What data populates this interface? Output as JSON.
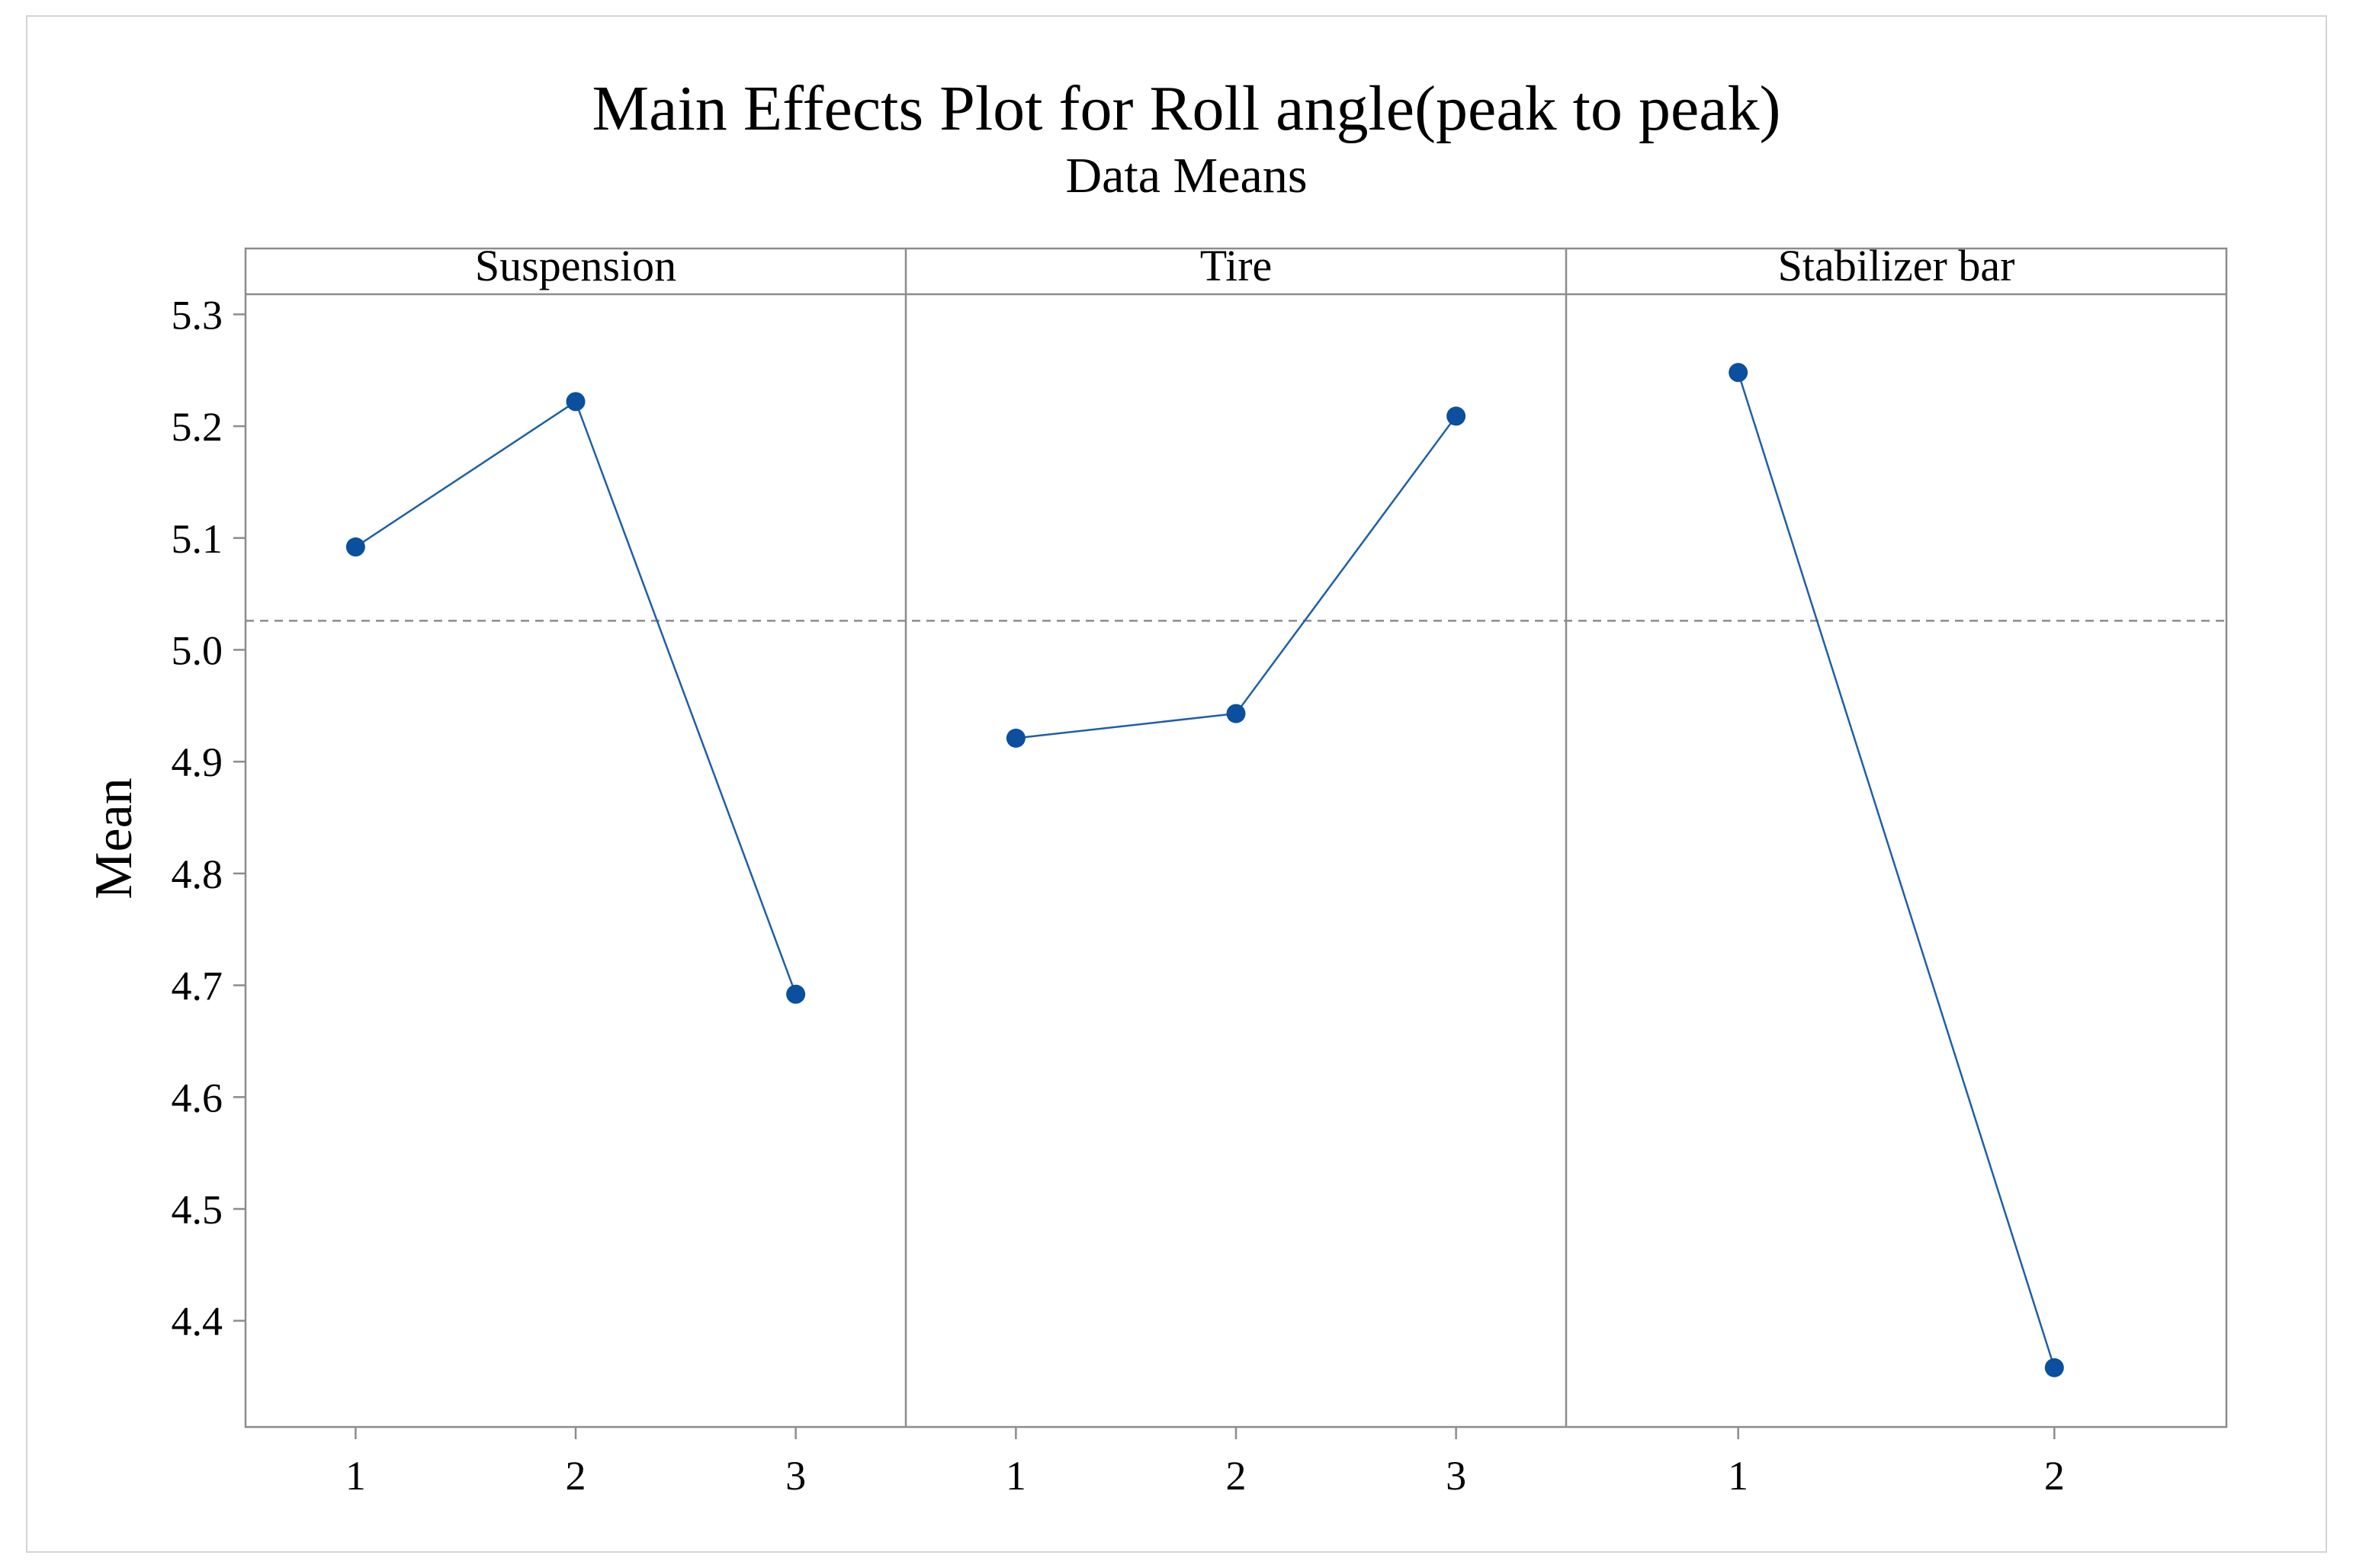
{
  "chart_data": {
    "type": "line",
    "title": "Main Effects Plot for Roll angle(peak to peak)",
    "subtitle": "Data Means",
    "ylabel": "Mean",
    "ylim": [
      4.305,
      5.318
    ],
    "yticks": [
      "4.4",
      "4.5",
      "4.6",
      "4.7",
      "4.8",
      "4.9",
      "5.0",
      "5.1",
      "5.2",
      "5.3"
    ],
    "grand_mean": 5.026,
    "panels": [
      {
        "name": "Suspension",
        "categories": [
          "1",
          "2",
          "3"
        ],
        "values": [
          5.092,
          5.222,
          4.692
        ]
      },
      {
        "name": "Tire",
        "categories": [
          "1",
          "2",
          "3"
        ],
        "values": [
          4.921,
          4.943,
          5.209
        ]
      },
      {
        "name": "Stabilizer bar",
        "categories": [
          "1",
          "2"
        ],
        "values": [
          5.248,
          4.358
        ]
      }
    ],
    "colors": {
      "series": "#1f5fa8",
      "marker": "#0b4f9e",
      "reference": "#8c8c8c",
      "frame": "#8c8c8c"
    }
  }
}
